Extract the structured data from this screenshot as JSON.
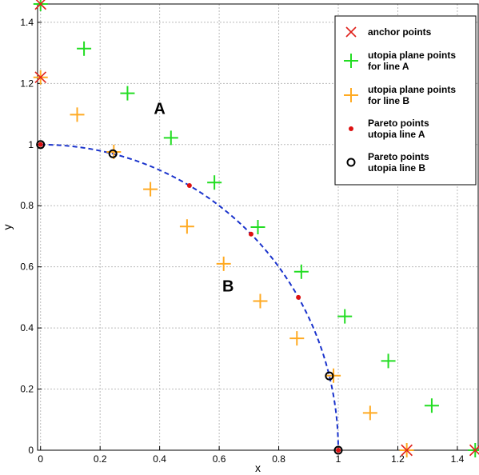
{
  "chart_data": {
    "type": "scatter",
    "title": "",
    "xlabel": "x",
    "ylabel": "y",
    "xlim": [
      -0.01,
      1.47
    ],
    "ylim": [
      0,
      1.46
    ],
    "xticks": [
      0,
      0.2,
      0.4,
      0.6,
      0.8,
      1,
      1.2,
      1.4
    ],
    "yticks": [
      0,
      0.2,
      0.4,
      0.6,
      0.8,
      1,
      1.2,
      1.4
    ],
    "xtick_labels": [
      "0",
      "0.2",
      "0.4",
      "0.6",
      "0.8",
      "1",
      "1.2",
      "1.4"
    ],
    "ytick_labels": [
      "0",
      "0.2",
      "0.4",
      "0.6",
      "0.8",
      "1",
      "1.2",
      "1.4"
    ],
    "grid": true,
    "legend_position": "top-right",
    "curve": {
      "style": "dashed",
      "color": "#1a33cc",
      "description_values": "quarter circle x^2 + y^2 = 1 from (0,1) to (1,0)"
    },
    "series": [
      {
        "name": "anchor points",
        "marker": "x",
        "color": "#e0201a",
        "x": [
          0,
          1.46,
          0,
          1.23
        ],
        "y": [
          1.46,
          0,
          1.22,
          0
        ]
      },
      {
        "name": "utopia plane points for line A",
        "marker": "+",
        "color": "#22dd22",
        "x": [
          0,
          0.146,
          0.292,
          0.438,
          0.584,
          0.73,
          0.876,
          1.022,
          1.168,
          1.314,
          1.46
        ],
        "y": [
          1.46,
          1.314,
          1.168,
          1.022,
          0.876,
          0.73,
          0.584,
          0.438,
          0.292,
          0.146,
          0
        ]
      },
      {
        "name": "utopia plane points for line B",
        "marker": "+",
        "color": "#ffaa22",
        "x": [
          0,
          0.123,
          0.246,
          0.369,
          0.492,
          0.615,
          0.738,
          0.861,
          0.984,
          1.107,
          1.23
        ],
        "y": [
          1.22,
          1.098,
          0.976,
          0.854,
          0.732,
          0.61,
          0.488,
          0.366,
          0.244,
          0.122,
          0
        ]
      },
      {
        "name": "Pareto points utopia line A",
        "marker": "dot",
        "color": "#dd1111",
        "x": [
          0,
          0.5,
          0.707,
          0.866,
          1
        ],
        "y": [
          1,
          0.866,
          0.707,
          0.5,
          0
        ]
      },
      {
        "name": "Pareto points utopia line B",
        "marker": "circle",
        "color": "#000000",
        "x": [
          0,
          0.243,
          0.97,
          1
        ],
        "y": [
          1,
          0.97,
          0.243,
          0
        ]
      }
    ],
    "annotations": [
      {
        "text": "A",
        "x": 0.4,
        "y": 1.1
      },
      {
        "text": "B",
        "x": 0.63,
        "y": 0.52
      }
    ],
    "legend": {
      "entries": [
        {
          "marker": "x",
          "color": "#e0201a",
          "lines": [
            "anchor points"
          ]
        },
        {
          "marker": "+",
          "color": "#22dd22",
          "lines": [
            "utopia plane points",
            "for line A"
          ]
        },
        {
          "marker": "+",
          "color": "#ffaa22",
          "lines": [
            "utopia plane points",
            "for line B"
          ]
        },
        {
          "marker": "dot",
          "color": "#dd1111",
          "lines": [
            "Pareto points",
            "utopia line A"
          ]
        },
        {
          "marker": "circle",
          "color": "#000000",
          "lines": [
            "Pareto points",
            "utopia line B"
          ]
        }
      ]
    }
  }
}
